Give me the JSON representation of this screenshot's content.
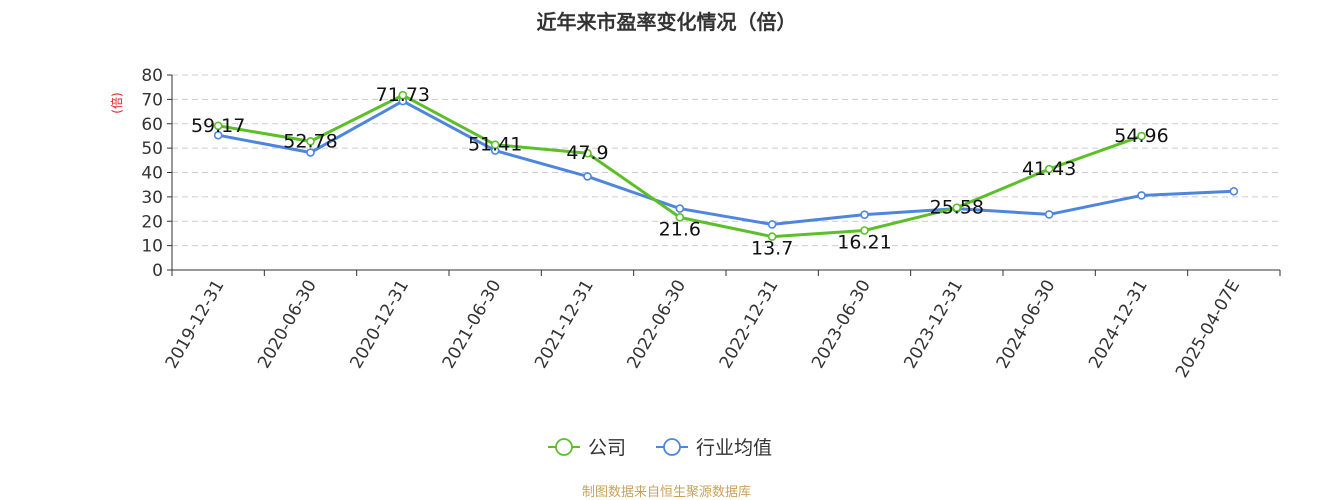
{
  "chart_data": {
    "type": "line",
    "title": "近年来市盈率变化情况（倍）",
    "ylabel": "(倍)",
    "ylim": [
      0,
      80
    ],
    "yticks": [
      0,
      10,
      20,
      30,
      40,
      50,
      60,
      70,
      80
    ],
    "grid": true,
    "legend_position": "bottom",
    "categories": [
      "2019-12-31",
      "2020-06-30",
      "2020-12-31",
      "2021-06-30",
      "2021-12-31",
      "2022-06-30",
      "2022-12-31",
      "2023-06-30",
      "2023-12-31",
      "2024-06-30",
      "2024-12-31",
      "2025-04-07E"
    ],
    "series": [
      {
        "name": "公司",
        "color": "#5cbf2a",
        "values": [
          59.17,
          52.78,
          71.73,
          51.41,
          47.9,
          21.6,
          13.7,
          16.21,
          25.58,
          41.43,
          54.96,
          null
        ],
        "labels": [
          "59.17",
          "52.78",
          "71.73",
          "51.41",
          "47.9",
          "21.6",
          "13.7",
          "16.21",
          "25.58",
          "41.43",
          "54.96",
          null
        ]
      },
      {
        "name": "行业均值",
        "color": "#4f86dd",
        "values": [
          55.3,
          48.2,
          69.3,
          49.0,
          38.4,
          25.2,
          18.7,
          22.7,
          25.2,
          22.8,
          30.6,
          32.3
        ]
      }
    ]
  },
  "source": "制图数据来自恒生聚源数据库"
}
